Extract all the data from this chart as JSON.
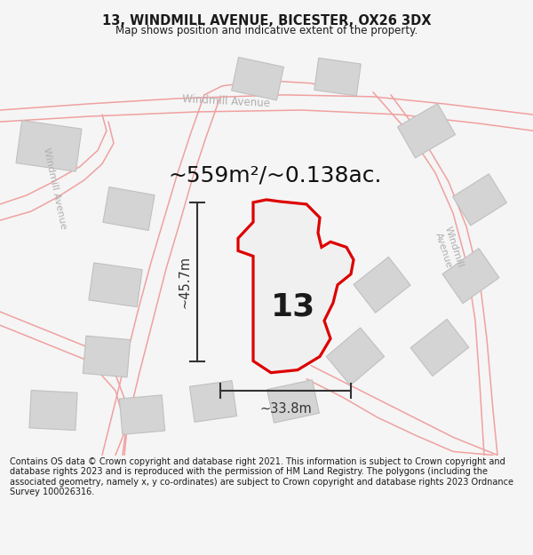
{
  "title": "13, WINDMILL AVENUE, BICESTER, OX26 3DX",
  "subtitle": "Map shows position and indicative extent of the property.",
  "area_text": "~559m²/~0.138ac.",
  "property_number": "13",
  "dim_vertical": "~45.7m",
  "dim_horizontal": "~33.8m",
  "footer": "Contains OS data © Crown copyright and database right 2021. This information is subject to Crown copyright and database rights 2023 and is reproduced with the permission of HM Land Registry. The polygons (including the associated geometry, namely x, y co-ordinates) are subject to Crown copyright and database rights 2023 Ordnance Survey 100026316.",
  "bg_color": "#f5f5f5",
  "map_bg": "#f5f5f5",
  "road_color": "#f0a0a0",
  "building_color": "#d4d4d4",
  "building_edge": "#c0c0c0",
  "property_color": "#f0f0f0",
  "property_edge": "#dd0000",
  "road_label_color": "#b0b0b0",
  "dim_color": "#333333",
  "title_color": "#1a1a1a",
  "footer_color": "#1a1a1a"
}
